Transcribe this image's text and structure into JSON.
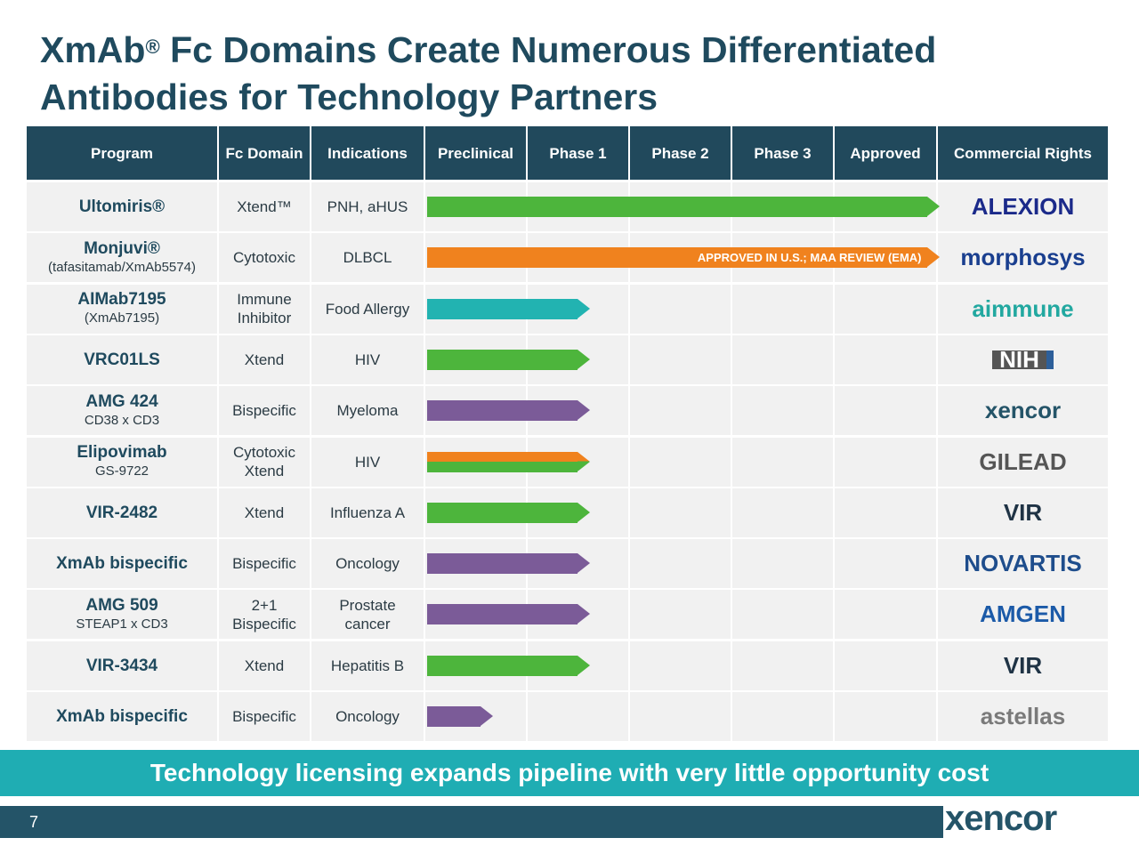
{
  "title": {
    "line1_a": "XmAb",
    "reg": "®",
    "line1_b": " Fc Domains Create Numerous Differentiated",
    "line2": "Antibodies for Technology Partners"
  },
  "headers": [
    "Program",
    "Fc Domain",
    "Indications",
    "Preclinical",
    "Phase 1",
    "Phase 2",
    "Phase 3",
    "Approved",
    "Commercial Rights"
  ],
  "colors": {
    "green": "#4db53c",
    "orange": "#f0821e",
    "teal": "#22b3b1",
    "purple": "#7b5b98"
  },
  "rows": [
    {
      "program": "Ultomiris®",
      "sub": "",
      "fc": "Xtend™",
      "ind": "PNH, aHUS",
      "stage": 5.0,
      "colors": [
        "green"
      ],
      "label": "",
      "partner": "ALEXION",
      "pcolor": "#1b2a8a"
    },
    {
      "program": "Monjuvi®",
      "sub": "(tafasitamab/XmAb5574)",
      "fc": "Cytotoxic",
      "ind": "DLBCL",
      "stage": 5.0,
      "colors": [
        "orange"
      ],
      "label": "APPROVED IN U.S.; MAA REVIEW (EMA)",
      "partner": "morphosys",
      "pcolor": "#1a3f8f"
    },
    {
      "program": "AIMab7195",
      "sub": "(XmAb7195)",
      "fc": "Immune Inhibitor",
      "ind": "Food Allergy",
      "stage": 1.6,
      "colors": [
        "teal"
      ],
      "label": "",
      "partner": "aimmune",
      "pcolor": "#22a8a0"
    },
    {
      "program": "VRC01LS",
      "sub": "",
      "fc": "Xtend",
      "ind": "HIV",
      "stage": 1.6,
      "colors": [
        "green"
      ],
      "label": "",
      "partner": "NIH",
      "pcolor": "#ffffff"
    },
    {
      "program": "AMG 424",
      "sub": "CD38 x CD3",
      "fc": "Bispecific",
      "ind": "Myeloma",
      "stage": 1.6,
      "colors": [
        "purple"
      ],
      "label": "",
      "partner": "xencor",
      "pcolor": "#245468"
    },
    {
      "program": "Elipovimab",
      "sub": "GS-9722",
      "fc": "Cytotoxic Xtend",
      "ind": "HIV",
      "stage": 1.6,
      "colors": [
        "orange",
        "green"
      ],
      "label": "",
      "partner": "GILEAD",
      "pcolor": "#555555"
    },
    {
      "program": "VIR-2482",
      "sub": "",
      "fc": "Xtend",
      "ind": "Influenza A",
      "stage": 1.6,
      "colors": [
        "green"
      ],
      "label": "",
      "partner": "VIR",
      "pcolor": "#1f3345"
    },
    {
      "program": "XmAb bispecific",
      "sub": "",
      "fc": "Bispecific",
      "ind": "Oncology",
      "stage": 1.6,
      "colors": [
        "purple"
      ],
      "label": "",
      "partner": "NOVARTIS",
      "pcolor": "#1e4d8c"
    },
    {
      "program": "AMG 509",
      "sub": "STEAP1 x CD3",
      "fc": "2+1 Bispecific",
      "ind": "Prostate cancer",
      "stage": 1.6,
      "colors": [
        "purple"
      ],
      "label": "",
      "partner": "AMGEN",
      "pcolor": "#1b5aa8"
    },
    {
      "program": "VIR-3434",
      "sub": "",
      "fc": "Xtend",
      "ind": "Hepatitis B",
      "stage": 1.6,
      "colors": [
        "green"
      ],
      "label": "",
      "partner": "VIR",
      "pcolor": "#1f3345"
    },
    {
      "program": "XmAb bispecific",
      "sub": "",
      "fc": "Bispecific",
      "ind": "Oncology",
      "stage": 0.66,
      "colors": [
        "purple"
      ],
      "label": "",
      "partner": "astellas",
      "pcolor": "#7a7a7a"
    }
  ],
  "banner": "Technology licensing expands pipeline with very little opportunity cost",
  "page": "7",
  "footer_logo": "xencor"
}
